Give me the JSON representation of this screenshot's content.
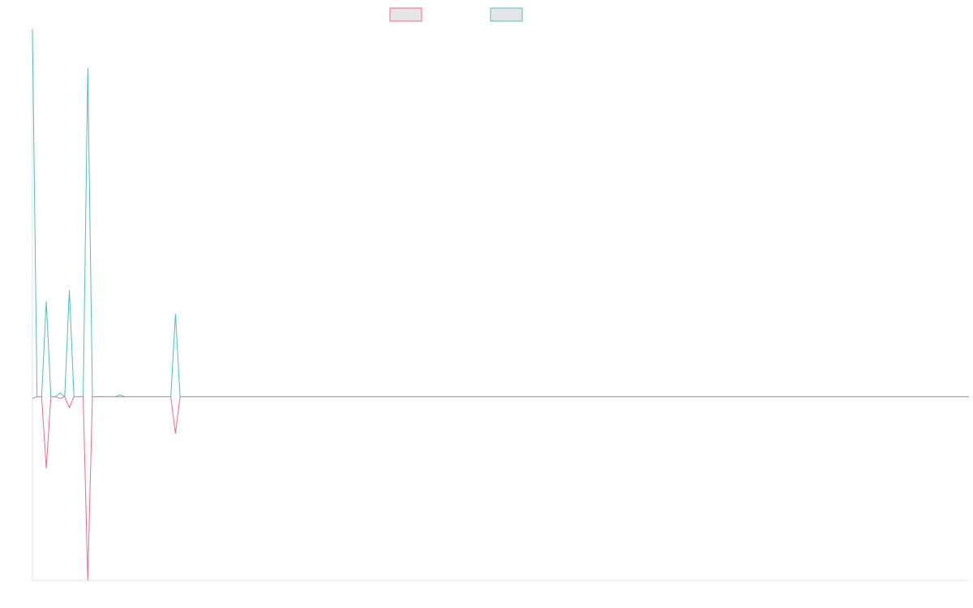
{
  "chart_data": {
    "type": "line",
    "x": [
      0,
      1,
      2,
      3,
      4,
      5,
      6,
      7,
      8,
      9,
      10,
      11,
      12,
      13,
      14,
      15,
      16,
      17,
      18,
      19,
      20,
      21,
      22,
      23,
      24,
      25,
      26,
      27,
      28,
      29,
      30,
      31,
      32,
      203
    ],
    "series": [
      {
        "color": "#ff6384",
        "values": [
          -1,
          0,
          0,
          -39,
          0,
          0,
          -1,
          0,
          -6,
          0,
          0,
          0,
          -100,
          0,
          0,
          0,
          0,
          0,
          0,
          0,
          0,
          0,
          0,
          0,
          0,
          0,
          0,
          0,
          0,
          0,
          0,
          -20,
          0,
          0
        ]
      },
      {
        "color": "#4bc0c0",
        "values": [
          200,
          0,
          0,
          52,
          0,
          0,
          2,
          0,
          58,
          0,
          0,
          0,
          179,
          0,
          0,
          0,
          0,
          0,
          0,
          1,
          0,
          0,
          0,
          0,
          0,
          0,
          0,
          0,
          0,
          0,
          0,
          45,
          0,
          0
        ]
      }
    ],
    "xlim": [
      0,
      203
    ],
    "ylim": [
      -100,
      200
    ]
  }
}
